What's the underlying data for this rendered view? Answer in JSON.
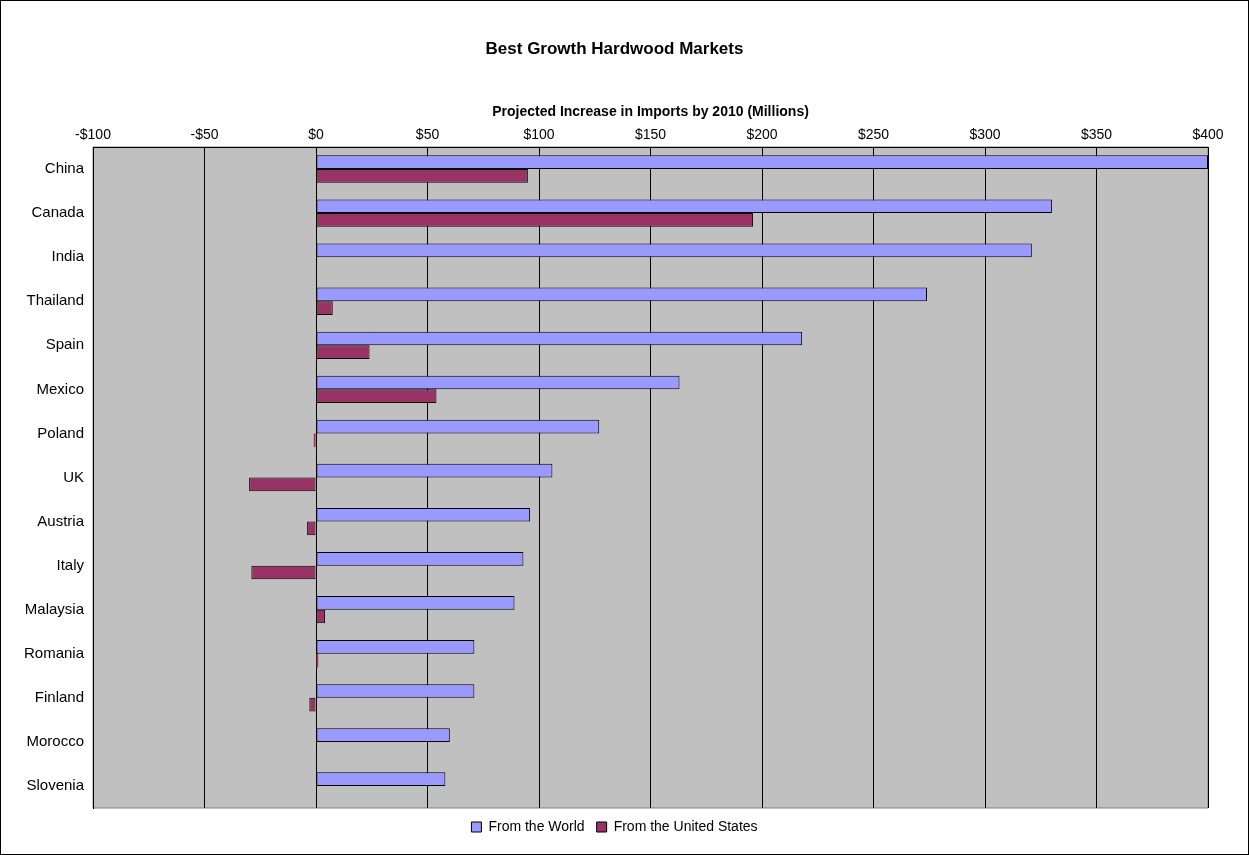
{
  "chart_data": {
    "type": "bar",
    "orientation": "horizontal",
    "title": "Best Growth Hardwood Markets",
    "xlabel": "Projected Increase in Imports by 2010 (Millions)",
    "categories": [
      "China",
      "Canada",
      "India",
      "Thailand",
      "Spain",
      "Mexico",
      "Poland",
      "UK",
      "Austria",
      "Italy",
      "Malaysia",
      "Romania",
      "Finland",
      "Morocco",
      "Slovenia"
    ],
    "series": [
      {
        "name": "From the World",
        "color": "#9999ff",
        "values": [
          400,
          330,
          321,
          274,
          218,
          163,
          127,
          106,
          96,
          93,
          89,
          71,
          71,
          60,
          58
        ]
      },
      {
        "name": "From the United States",
        "color": "#993366",
        "values": [
          95,
          196,
          null,
          7.5,
          24,
          54,
          -1,
          -30,
          -4,
          -29,
          4,
          1,
          -3,
          null,
          null
        ]
      }
    ],
    "xlim": [
      -100,
      400
    ],
    "xticks": [
      {
        "value": -100,
        "label": "-$100"
      },
      {
        "value": -50,
        "label": "-$50"
      },
      {
        "value": 0,
        "label": "$0"
      },
      {
        "value": 50,
        "label": "$50"
      },
      {
        "value": 100,
        "label": "$100"
      },
      {
        "value": 150,
        "label": "$150"
      },
      {
        "value": 200,
        "label": "$200"
      },
      {
        "value": 250,
        "label": "$250"
      },
      {
        "value": 300,
        "label": "$300"
      },
      {
        "value": 350,
        "label": "$350"
      },
      {
        "value": 400,
        "label": "$400"
      }
    ],
    "grid": "x",
    "legend": "bottom"
  }
}
